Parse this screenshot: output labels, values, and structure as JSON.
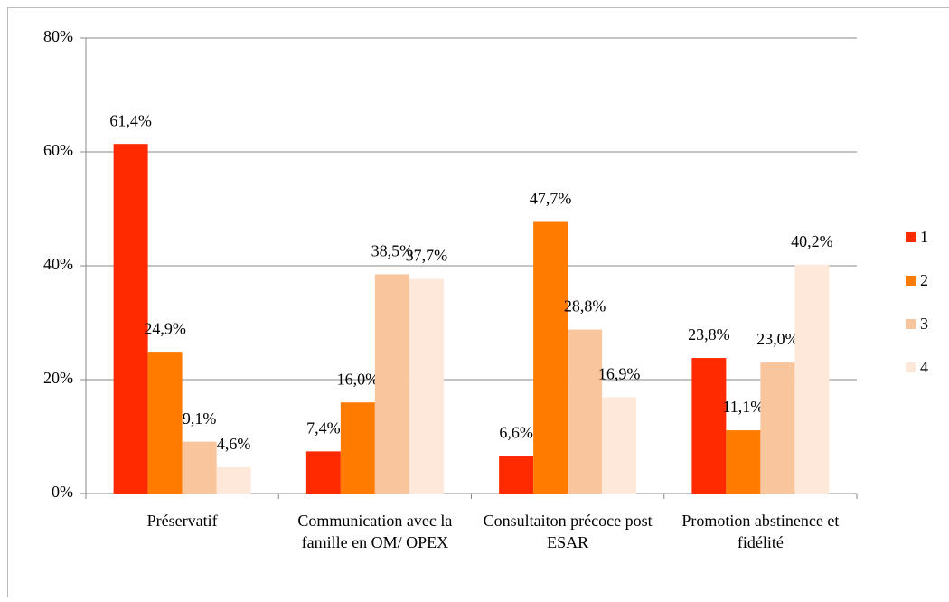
{
  "chart_data": {
    "type": "bar",
    "categories": [
      "Préservatif",
      "Communication avec la famille en OM/ OPEX",
      "Consultaiton précoce post ESAR",
      "Promotion abstinence et fidélité"
    ],
    "series": [
      {
        "name": "1",
        "color": "#ff2a00",
        "values": [
          61.4,
          7.4,
          6.6,
          23.8
        ],
        "value_labels": [
          "61,4%",
          "7,4%",
          "6,6%",
          "23,8%"
        ]
      },
      {
        "name": "2",
        "color": "#ff7c00",
        "values": [
          24.9,
          16.0,
          47.7,
          11.1
        ],
        "value_labels": [
          "24,9%",
          "16,0%",
          "47,7%",
          "11,1%"
        ]
      },
      {
        "name": "3",
        "color": "#f9c59c",
        "values": [
          9.1,
          38.5,
          28.8,
          23.0
        ],
        "value_labels": [
          "9,1%",
          "38,5%",
          "28,8%",
          "23,0%"
        ]
      },
      {
        "name": "4",
        "color": "#fde8da",
        "values": [
          4.6,
          37.7,
          16.9,
          40.2
        ],
        "value_labels": [
          "4,6%",
          "37,7%",
          "16,9%",
          "40,2%"
        ]
      }
    ],
    "ylim": [
      0,
      80
    ],
    "yticks": [
      {
        "value": 0,
        "label": "0%"
      },
      {
        "value": 20,
        "label": "20%"
      },
      {
        "value": 40,
        "label": "40%"
      },
      {
        "value": 60,
        "label": "60%"
      },
      {
        "value": 80,
        "label": "80%"
      }
    ],
    "grid": true,
    "legend": "right"
  }
}
